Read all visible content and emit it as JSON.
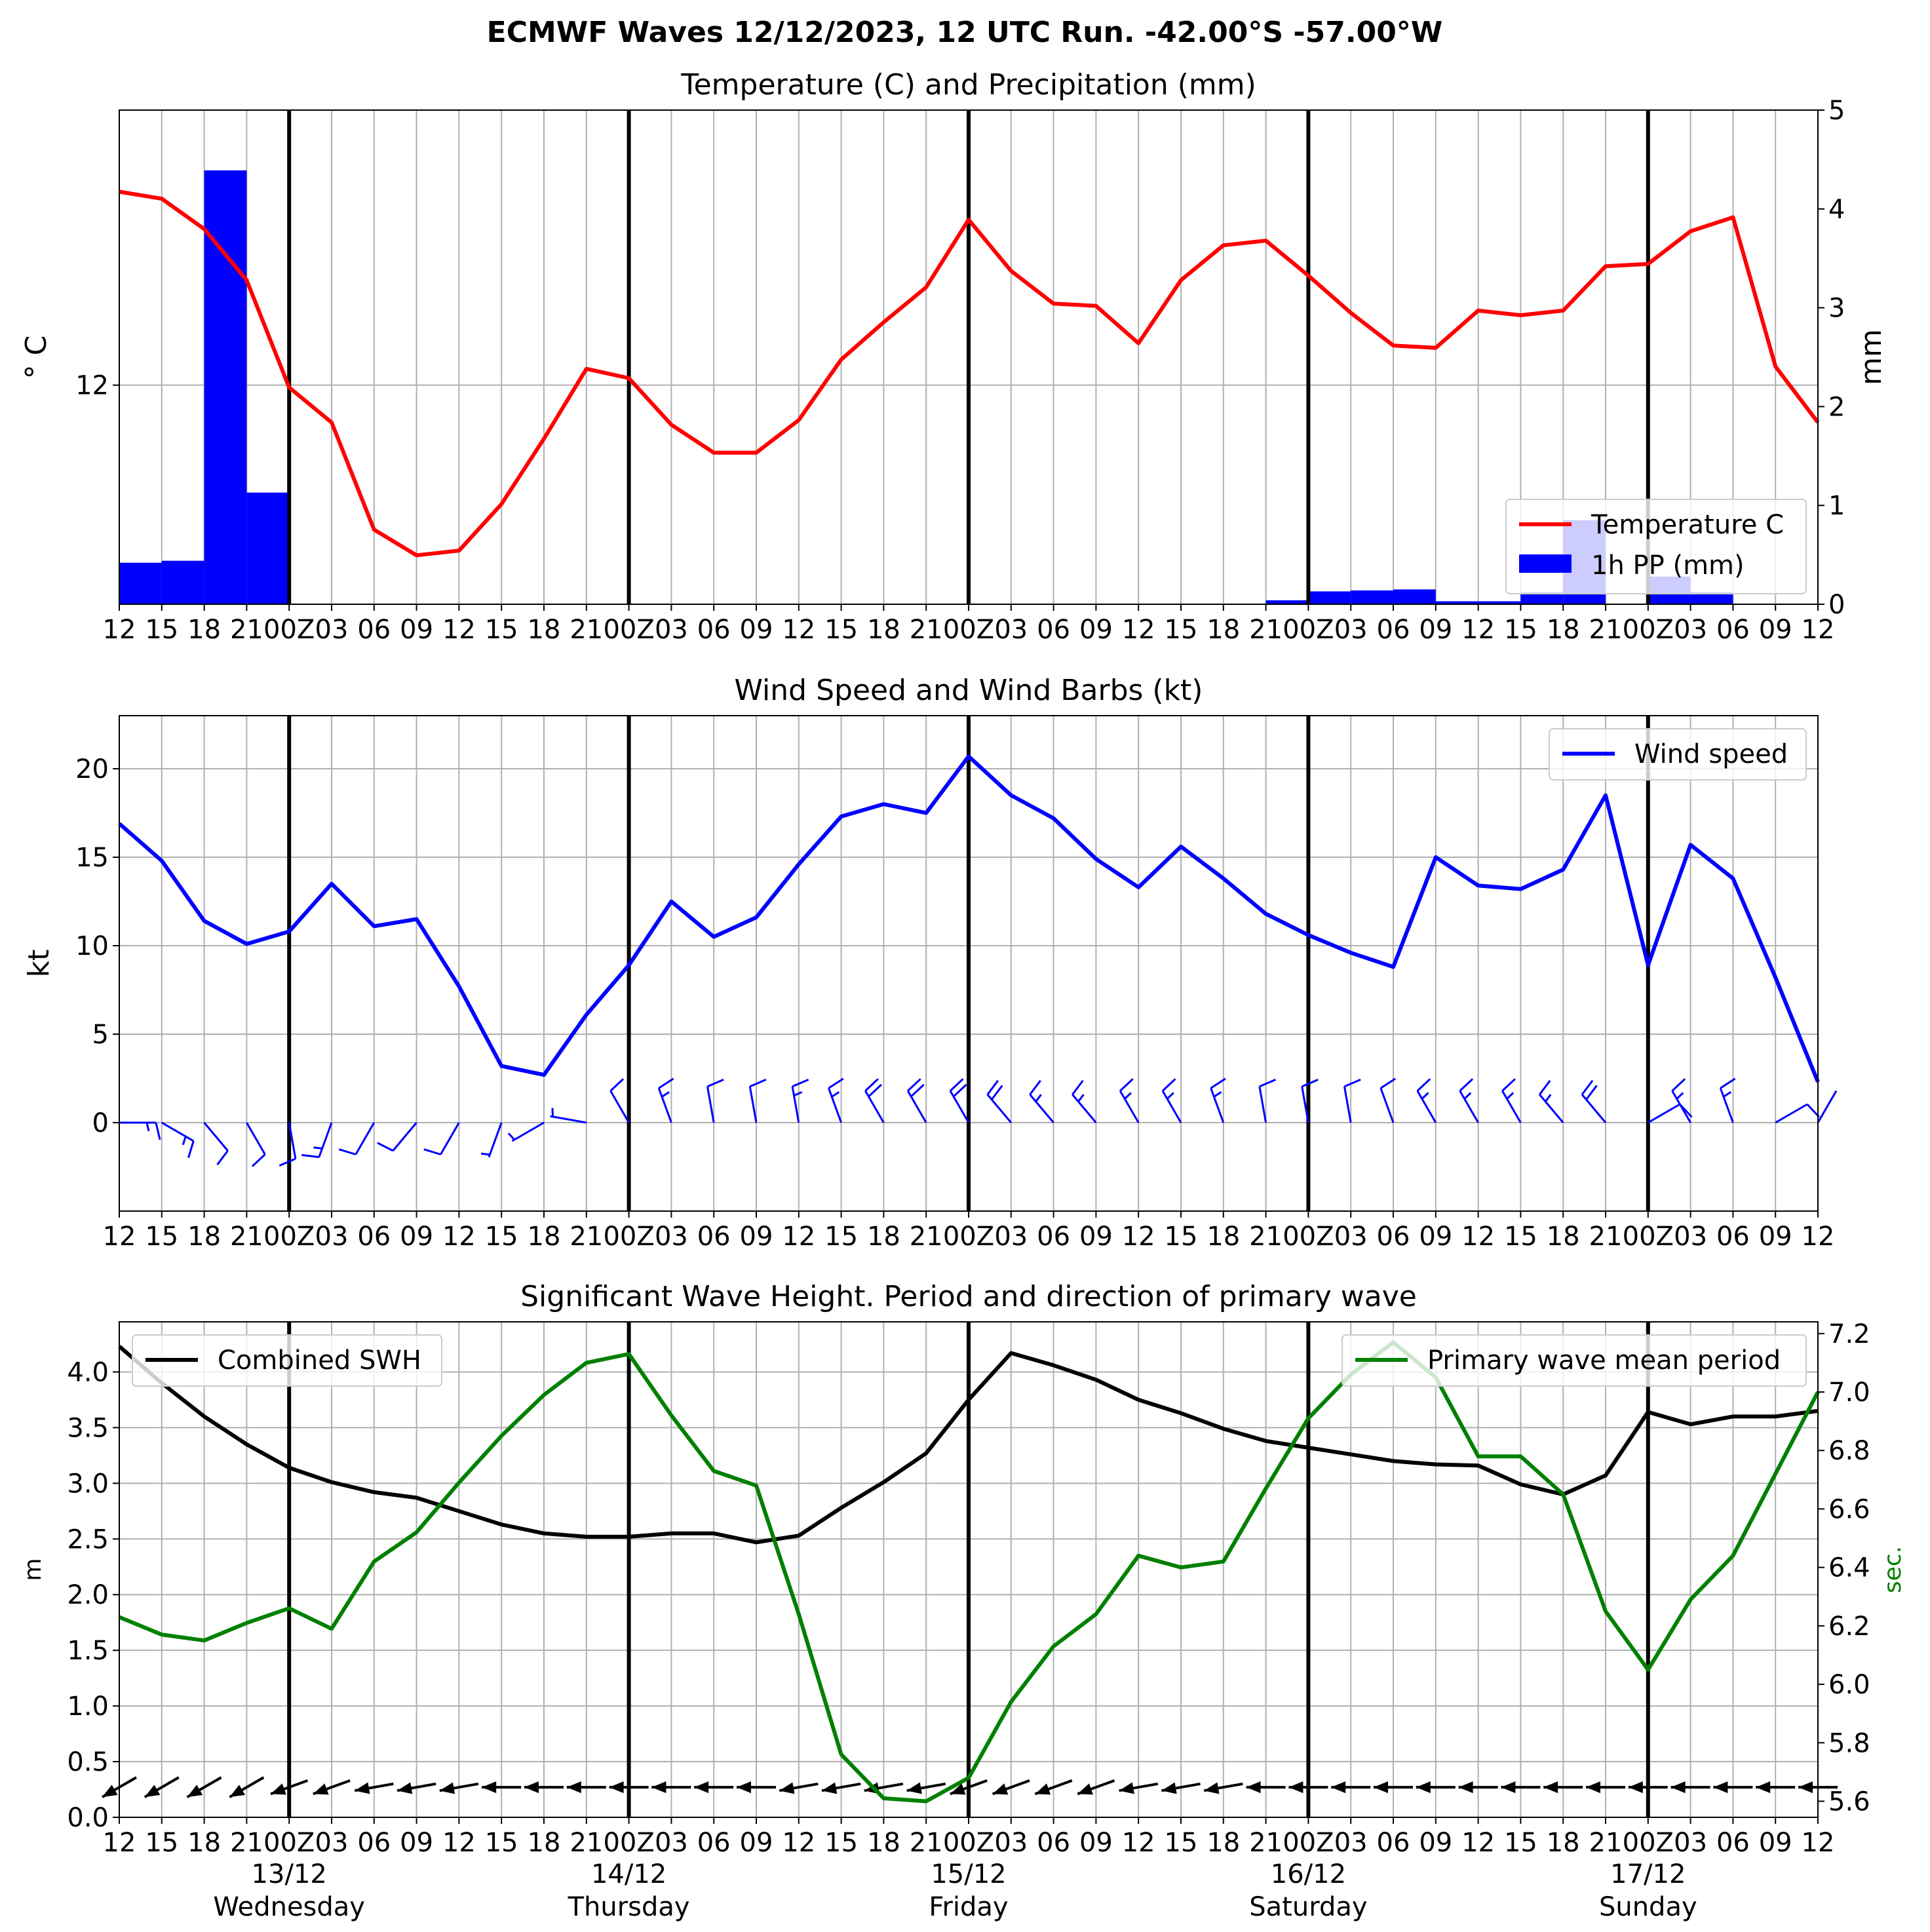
{
  "title": "ECMWF Waves 12/12/2023, 12 UTC Run. -42.00°S -57.00°W",
  "time_ticks": [
    "12",
    "15",
    "18",
    "21",
    "00Z",
    "03",
    "06",
    "09",
    "12",
    "15",
    "18",
    "21",
    "00Z",
    "03",
    "06",
    "09",
    "12",
    "15",
    "18",
    "21",
    "00Z",
    "03",
    "06",
    "09",
    "12",
    "15",
    "18",
    "21",
    "00Z",
    "03",
    "06",
    "09",
    "12",
    "15",
    "18",
    "21",
    "00Z",
    "03",
    "06",
    "09",
    "12"
  ],
  "date_labels": [
    {
      "date": "13/12",
      "day": "Wednesday"
    },
    {
      "date": "14/12",
      "day": "Thursday"
    },
    {
      "date": "15/12",
      "day": "Friday"
    },
    {
      "date": "16/12",
      "day": "Saturday"
    },
    {
      "date": "17/12",
      "day": "Sunday"
    }
  ],
  "colors": {
    "temperature": "#ff0000",
    "precip": "#0000ff",
    "wind": "#0000ff",
    "swh": "#000000",
    "period": "#008000",
    "grid": "#b0b0b0"
  },
  "chart_data": [
    {
      "type": "line",
      "title": "Temperature (C) and Precipitation (mm)",
      "ylabel": "$^\\circ$C",
      "ylabel_display": "° C",
      "y2label": "mm",
      "yticks": [
        12
      ],
      "ylim": [
        7.3,
        17.9
      ],
      "y2ticks": [
        0,
        1,
        2,
        3,
        4,
        5
      ],
      "y2lim": [
        0,
        5
      ],
      "grid": true,
      "legend": {
        "position": "lower-right",
        "entries": [
          "Temperature C",
          "1h PP (mm)"
        ]
      },
      "series": [
        {
          "name": "Temperature C",
          "axis": "left",
          "kind": "line",
          "values": [
            16.15,
            16.0,
            15.35,
            14.25,
            11.95,
            11.2,
            8.9,
            8.35,
            8.45,
            9.45,
            10.85,
            12.35,
            12.15,
            11.15,
            10.55,
            10.55,
            11.25,
            12.55,
            13.35,
            14.1,
            15.55,
            14.45,
            13.75,
            13.7,
            12.9,
            14.25,
            15.0,
            15.1,
            14.35,
            13.55,
            12.85,
            12.8,
            13.6,
            13.5,
            13.6,
            14.55,
            14.6,
            15.3,
            15.6,
            12.4,
            11.2
          ]
        },
        {
          "name": "1h PP (mm)",
          "axis": "right",
          "kind": "bar",
          "color": "#0000ff",
          "values": [
            0.42,
            0.44,
            4.39,
            1.13,
            0,
            0,
            0,
            0,
            0,
            0,
            0,
            0,
            0,
            0,
            0,
            0,
            0,
            0,
            0,
            0,
            0,
            0,
            0,
            0,
            0,
            0,
            0,
            0.04,
            0.13,
            0.14,
            0.15,
            0.03,
            0.03,
            0.12,
            0.85,
            0,
            0.28,
            0.12,
            0,
            0
          ]
        }
      ]
    },
    {
      "type": "line",
      "title": "Wind Speed and Wind Barbs (kt)",
      "ylabel": "kt",
      "yticks": [
        0,
        5,
        10,
        15,
        20
      ],
      "ylim": [
        -5,
        23
      ],
      "grid": true,
      "legend": {
        "position": "top-right",
        "entries": [
          "Wind speed"
        ]
      },
      "series": [
        {
          "name": "Wind speed",
          "axis": "left",
          "kind": "line",
          "values": [
            16.9,
            14.8,
            11.4,
            10.1,
            10.8,
            13.5,
            11.1,
            11.5,
            7.7,
            3.2,
            2.7,
            6.1,
            8.9,
            12.5,
            10.5,
            11.6,
            14.6,
            17.3,
            18.0,
            17.5,
            20.7,
            18.5,
            17.2,
            14.9,
            13.3,
            15.6,
            13.8,
            11.8,
            10.6,
            9.6,
            8.8,
            15.0,
            13.4,
            13.2,
            14.3,
            18.5,
            8.9,
            15.7,
            13.8,
            8.2,
            2.3
          ]
        }
      ],
      "barbs_dir_deg": [
        90,
        120,
        140,
        150,
        170,
        200,
        210,
        220,
        210,
        200,
        240,
        280,
        330,
        340,
        350,
        350,
        350,
        340,
        330,
        330,
        330,
        320,
        320,
        320,
        330,
        330,
        340,
        350,
        350,
        350,
        340,
        330,
        330,
        330,
        320,
        320,
        60,
        330,
        340,
        60,
        30
      ]
    },
    {
      "type": "line",
      "title": "Significant Wave Height. Period and direction of primary wave",
      "ylabel": "m",
      "y2label": "sec.",
      "yticks": [
        0.0,
        0.5,
        1.0,
        1.5,
        2.0,
        2.5,
        3.0,
        3.5,
        4.0
      ],
      "ylim": [
        0,
        4.45
      ],
      "y2ticks": [
        5.6,
        5.8,
        6.0,
        6.2,
        6.4,
        6.6,
        6.8,
        7.0,
        7.2
      ],
      "y2lim": [
        5.545,
        7.24
      ],
      "grid": true,
      "legend": [
        {
          "position": "top-left",
          "entries": [
            "Combined SWH"
          ]
        },
        {
          "position": "top-right",
          "entries": [
            "Primary wave mean period"
          ]
        }
      ],
      "series": [
        {
          "name": "Combined SWH",
          "axis": "left",
          "kind": "line",
          "color": "#000000",
          "values": [
            4.23,
            3.9,
            3.6,
            3.35,
            3.14,
            3.01,
            2.92,
            2.87,
            2.75,
            2.63,
            2.55,
            2.52,
            2.52,
            2.55,
            2.55,
            2.47,
            2.53,
            2.78,
            3.01,
            3.27,
            3.75,
            4.17,
            4.06,
            3.93,
            3.75,
            3.63,
            3.49,
            3.38,
            3.32,
            3.26,
            3.2,
            3.17,
            3.16,
            2.99,
            2.9,
            3.07,
            3.64,
            3.53,
            3.6,
            3.6,
            3.65
          ]
        },
        {
          "name": "Primary wave mean period",
          "axis": "right",
          "kind": "line",
          "color": "#008000",
          "values": [
            6.23,
            6.17,
            6.15,
            6.21,
            6.26,
            6.19,
            6.42,
            6.52,
            6.69,
            6.85,
            6.99,
            7.1,
            7.13,
            6.92,
            6.73,
            6.68,
            6.24,
            5.76,
            5.61,
            5.6,
            5.68,
            5.94,
            6.13,
            6.24,
            6.44,
            6.4,
            6.42,
            6.67,
            6.91,
            7.06,
            7.17,
            7.05,
            6.78,
            6.78,
            6.65,
            6.25,
            6.05,
            6.29,
            6.44,
            6.72,
            7.0
          ]
        }
      ],
      "arrows_dir_deg": [
        60,
        60,
        60,
        60,
        70,
        70,
        80,
        80,
        80,
        90,
        90,
        90,
        90,
        90,
        90,
        90,
        80,
        80,
        80,
        80,
        70,
        70,
        70,
        70,
        80,
        80,
        80,
        90,
        90,
        90,
        90,
        90,
        90,
        90,
        90,
        90,
        90,
        90,
        90,
        90,
        90
      ]
    }
  ]
}
